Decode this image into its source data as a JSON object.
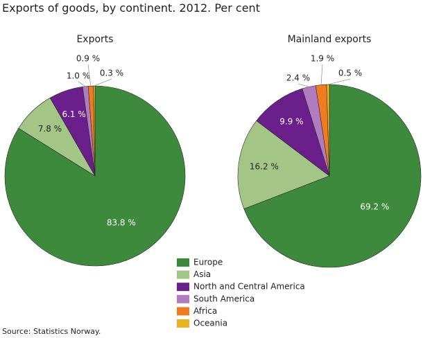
{
  "title": "Exports of goods, by continent. 2012. Per cent",
  "source": "Source: Statistics Norway.",
  "chart_data": [
    {
      "type": "pie",
      "title": "Exports",
      "categories": [
        "Europe",
        "Asia",
        "North and Central America",
        "South America",
        "Africa",
        "Oceania"
      ],
      "values": [
        83.8,
        7.8,
        6.1,
        1.0,
        0.9,
        0.3
      ],
      "value_labels": [
        "83.8 %",
        "7.8 %",
        "6.1 %",
        "1.0 %",
        "0.9 %",
        "0.3 %"
      ],
      "colors": [
        "#3d8a3d",
        "#a3c585",
        "#6a1f8a",
        "#b07cc0",
        "#f07b20",
        "#e8b31c"
      ]
    },
    {
      "type": "pie",
      "title": "Mainland exports",
      "categories": [
        "Europe",
        "Asia",
        "North and Central America",
        "South America",
        "Africa",
        "Oceania"
      ],
      "values": [
        69.2,
        16.2,
        9.9,
        2.4,
        1.9,
        0.5
      ],
      "value_labels": [
        "69.2 %",
        "16.2 %",
        "9.9 %",
        "2.4 %",
        "1.9 %",
        "0.5 %"
      ],
      "colors": [
        "#3d8a3d",
        "#a3c585",
        "#6a1f8a",
        "#b07cc0",
        "#f07b20",
        "#e8b31c"
      ]
    }
  ]
}
